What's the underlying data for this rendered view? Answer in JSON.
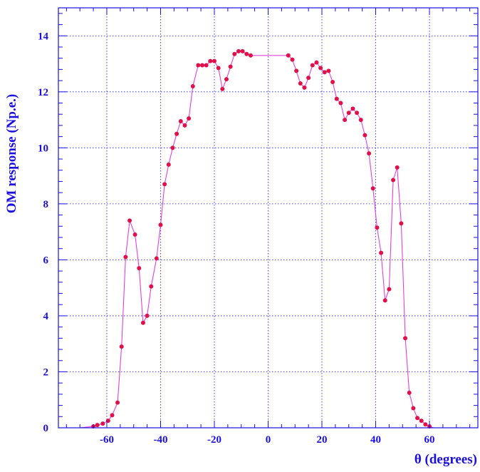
{
  "chart_data": {
    "type": "line",
    "title": "",
    "xlabel": "θ (degrees)",
    "ylabel": "OM response (Np.e.)",
    "xlim": [
      -78,
      78
    ],
    "ylim": [
      0,
      15
    ],
    "xticks": [
      -60,
      -40,
      -20,
      0,
      20,
      40,
      60
    ],
    "xtick_labels": [
      "-60",
      "-40",
      "-20",
      "0",
      "20",
      "40",
      "60"
    ],
    "yticks": [
      0,
      2,
      4,
      6,
      8,
      10,
      12,
      14
    ],
    "ytick_labels": [
      "0",
      "2",
      "4",
      "6",
      "8",
      "10",
      "12",
      "14"
    ],
    "grid": true,
    "grid_style": "dotted",
    "colors": {
      "axis": "#1a0fe0",
      "line": "#e040e0",
      "marker": "#e0104a",
      "grid": "#1a0fe0"
    },
    "series": [
      {
        "x": [
          -78,
          -70,
          -65,
          -63.5,
          -61.5,
          -59.5,
          -58,
          -56,
          -54.5,
          -53,
          -51.5,
          -49.5,
          -48,
          -46.5,
          -45,
          -43.5,
          -41.5,
          -40,
          -38.5,
          -37,
          -35.5,
          -34,
          -32.5,
          -31,
          -29.5,
          -28,
          -26,
          -24.5,
          -23,
          -21.5,
          -20,
          -18.5,
          -17,
          -15.5,
          -14,
          -12.5,
          -11,
          -9.5,
          -8,
          -6.5,
          7.5,
          9,
          10.5,
          12,
          13.5,
          15,
          16.5,
          18,
          19.5,
          21,
          22.5,
          24,
          25.5,
          27,
          28.5,
          30,
          31.5,
          33,
          34.5,
          36,
          37.5,
          39,
          40.5,
          42,
          43.5,
          45,
          46.5,
          48,
          49.5,
          51,
          52.5,
          54,
          55.5,
          57,
          58.5,
          60,
          61.5,
          63,
          64.5,
          66,
          78
        ],
        "y": [
          0,
          0,
          0.05,
          0.1,
          0.15,
          0.25,
          0.45,
          0.9,
          2.9,
          6.1,
          7.4,
          6.9,
          5.7,
          3.75,
          4.0,
          5.05,
          6.05,
          7.25,
          8.7,
          9.4,
          10.0,
          10.5,
          10.95,
          10.8,
          11.05,
          12.2,
          12.95,
          12.95,
          12.95,
          13.1,
          13.1,
          12.85,
          12.1,
          12.45,
          12.9,
          13.35,
          13.45,
          13.45,
          13.35,
          13.3,
          13.3,
          13.15,
          12.75,
          12.3,
          12.15,
          12.5,
          12.95,
          13.05,
          12.85,
          12.7,
          12.75,
          12.35,
          11.75,
          11.6,
          11.0,
          11.25,
          11.4,
          11.25,
          11.0,
          10.45,
          9.8,
          8.55,
          7.15,
          6.25,
          4.55,
          4.95,
          8.85,
          9.3,
          7.3,
          3.2,
          1.25,
          0.7,
          0.35,
          0.25,
          0.12,
          0.05,
          0,
          0,
          0,
          0,
          0
        ],
        "markers": true
      }
    ]
  }
}
